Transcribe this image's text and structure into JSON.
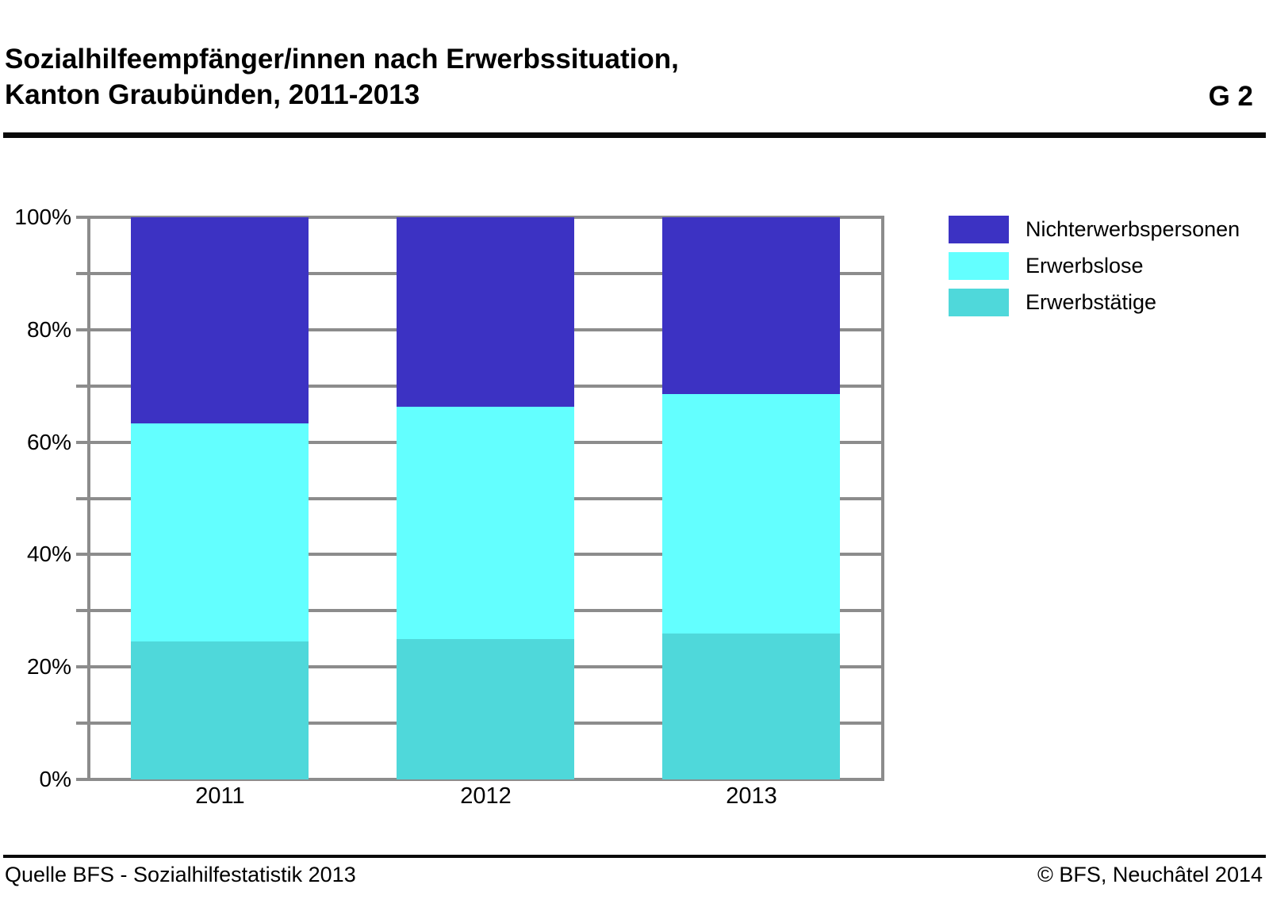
{
  "header": {
    "title_line1": "Sozialhilfeempfänger/innen nach Erwerbssituation,",
    "title_line2": "Kanton Graubünden, 2011-2013",
    "figure_label": "G 2"
  },
  "footer": {
    "source": "Quelle BFS - Sozialhilfestatistik 2013",
    "copyright": "© BFS, Neuchâtel 2014"
  },
  "chart_data": {
    "type": "bar",
    "subtype": "stacked-percentage-column",
    "title": "Sozialhilfeempfänger/innen nach Erwerbssituation, Kanton Graubünden, 2011-2013",
    "categories": [
      "2011",
      "2012",
      "2013"
    ],
    "unit": "%",
    "series": [
      {
        "name": "Erwerbstätige",
        "color": "#4fd8da",
        "values": [
          24.5,
          25.0,
          25.9
        ]
      },
      {
        "name": "Erwerbslose",
        "color": "#63ffff",
        "values": [
          38.9,
          41.3,
          42.6
        ]
      },
      {
        "name": "Nichterwerbspersonen",
        "color": "#3c32c3",
        "values": [
          36.6,
          33.7,
          31.5
        ]
      }
    ],
    "stack_order_note": "series listed bottom-to-top; each year sums to 100%",
    "ylim": [
      0,
      100
    ],
    "ytick_labels": [
      "0%",
      "20%",
      "40%",
      "60%",
      "80%",
      "100%"
    ],
    "gridline_step_percent": 10,
    "grid": true,
    "legend_position": "right",
    "legend_order": [
      "Nichterwerbspersonen",
      "Erwerbslose",
      "Erwerbstätige"
    ]
  }
}
